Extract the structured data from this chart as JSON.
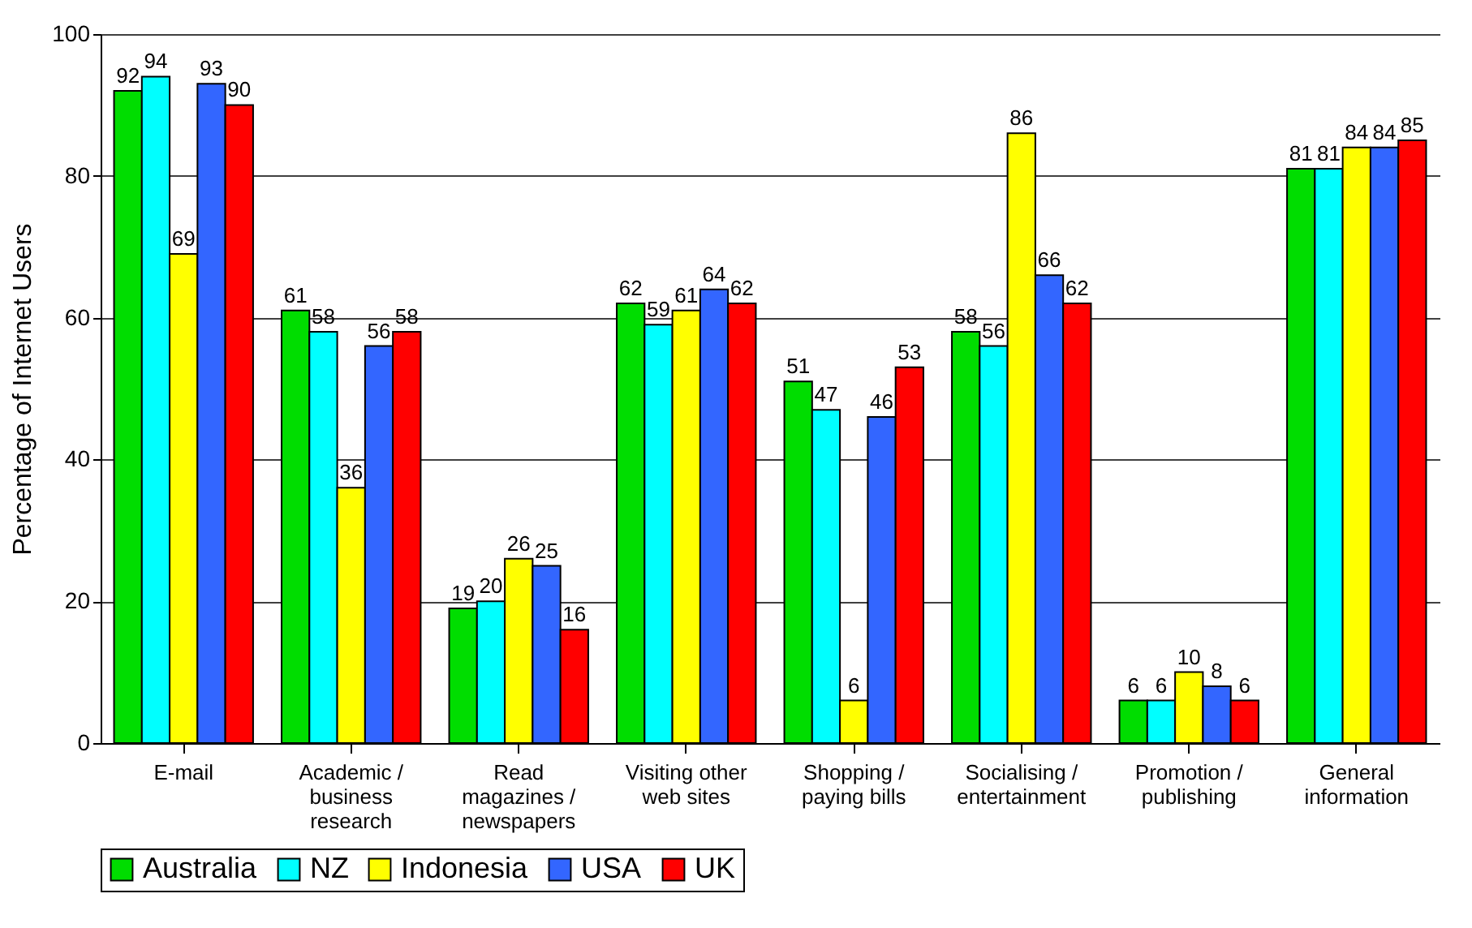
{
  "chart_data": {
    "type": "bar",
    "ylabel": "Percentage of Internet Users",
    "categories": [
      "E-mail",
      "Academic /\nbusiness\nresearch",
      "Read\nmagazines /\nnewspapers",
      "Visiting other\nweb sites",
      "Shopping /\npaying bills",
      "Socialising /\nentertainment",
      "Promotion /\npublishing",
      "General\ninformation"
    ],
    "series": [
      {
        "name": "Australia",
        "color": "#00dd00",
        "values": [
          92,
          61,
          19,
          62,
          51,
          58,
          6,
          81
        ]
      },
      {
        "name": "NZ",
        "color": "#00ffff",
        "values": [
          94,
          58,
          20,
          59,
          47,
          56,
          6,
          81
        ]
      },
      {
        "name": "Indonesia",
        "color": "#ffff00",
        "values": [
          69,
          36,
          26,
          61,
          6,
          86,
          10,
          84
        ]
      },
      {
        "name": "USA",
        "color": "#3366ff",
        "values": [
          93,
          56,
          25,
          64,
          46,
          66,
          8,
          84
        ]
      },
      {
        "name": "UK",
        "color": "#ff0000",
        "values": [
          90,
          58,
          16,
          62,
          53,
          62,
          6,
          85
        ]
      }
    ],
    "ylim": [
      0,
      100
    ],
    "yticks": [
      0,
      20,
      40,
      60,
      80,
      100
    ],
    "grid": "y",
    "legend": "bottom",
    "data_labels": true
  }
}
